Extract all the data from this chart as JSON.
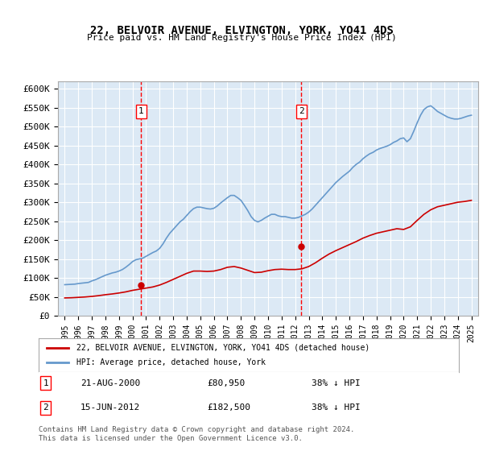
{
  "title": "22, BELVOIR AVENUE, ELVINGTON, YORK, YO41 4DS",
  "subtitle": "Price paid vs. HM Land Registry's House Price Index (HPI)",
  "hpi_label": "HPI: Average price, detached house, York",
  "property_label": "22, BELVOIR AVENUE, ELVINGTON, YORK, YO41 4DS (detached house)",
  "footer": "Contains HM Land Registry data © Crown copyright and database right 2024.\nThis data is licensed under the Open Government Licence v3.0.",
  "annotation1": {
    "num": "1",
    "date": "21-AUG-2000",
    "price": "£80,950",
    "hpi": "38% ↓ HPI",
    "year": 2000.64
  },
  "annotation2": {
    "num": "2",
    "date": "15-JUN-2012",
    "price": "£182,500",
    "hpi": "38% ↓ HPI",
    "year": 2012.46
  },
  "property_color": "#cc0000",
  "hpi_color": "#6699cc",
  "background_color": "#dce9f5",
  "grid_color": "#ffffff",
  "ylim": [
    0,
    620000
  ],
  "yticks": [
    0,
    50000,
    100000,
    150000,
    200000,
    250000,
    300000,
    350000,
    400000,
    450000,
    500000,
    550000,
    600000
  ],
  "xlim": [
    1994.5,
    2025.5
  ],
  "hpi_data": {
    "years": [
      1995,
      1995.25,
      1995.5,
      1995.75,
      1996,
      1996.25,
      1996.5,
      1996.75,
      1997,
      1997.25,
      1997.5,
      1997.75,
      1998,
      1998.25,
      1998.5,
      1998.75,
      1999,
      1999.25,
      1999.5,
      1999.75,
      2000,
      2000.25,
      2000.5,
      2000.75,
      2001,
      2001.25,
      2001.5,
      2001.75,
      2002,
      2002.25,
      2002.5,
      2002.75,
      2003,
      2003.25,
      2003.5,
      2003.75,
      2004,
      2004.25,
      2004.5,
      2004.75,
      2005,
      2005.25,
      2005.5,
      2005.75,
      2006,
      2006.25,
      2006.5,
      2006.75,
      2007,
      2007.25,
      2007.5,
      2007.75,
      2008,
      2008.25,
      2008.5,
      2008.75,
      2009,
      2009.25,
      2009.5,
      2009.75,
      2010,
      2010.25,
      2010.5,
      2010.75,
      2011,
      2011.25,
      2011.5,
      2011.75,
      2012,
      2012.25,
      2012.5,
      2012.75,
      2013,
      2013.25,
      2013.5,
      2013.75,
      2014,
      2014.25,
      2014.5,
      2014.75,
      2015,
      2015.25,
      2015.5,
      2015.75,
      2016,
      2016.25,
      2016.5,
      2016.75,
      2017,
      2017.25,
      2017.5,
      2017.75,
      2018,
      2018.25,
      2018.5,
      2018.75,
      2019,
      2019.25,
      2019.5,
      2019.75,
      2020,
      2020.25,
      2020.5,
      2020.75,
      2021,
      2021.25,
      2021.5,
      2021.75,
      2022,
      2022.25,
      2022.5,
      2022.75,
      2023,
      2023.25,
      2023.5,
      2023.75,
      2024,
      2024.25,
      2024.5,
      2024.75,
      2025
    ],
    "values": [
      82000,
      82500,
      83000,
      83500,
      85000,
      86000,
      87000,
      88000,
      92000,
      95000,
      99000,
      103000,
      107000,
      110000,
      113000,
      115000,
      118000,
      122000,
      128000,
      135000,
      143000,
      148000,
      150000,
      152000,
      157000,
      162000,
      167000,
      171000,
      178000,
      190000,
      205000,
      218000,
      228000,
      238000,
      248000,
      255000,
      265000,
      275000,
      283000,
      287000,
      287000,
      285000,
      283000,
      282000,
      284000,
      290000,
      298000,
      305000,
      312000,
      318000,
      318000,
      312000,
      305000,
      292000,
      278000,
      262000,
      252000,
      248000,
      252000,
      258000,
      263000,
      268000,
      268000,
      264000,
      262000,
      262000,
      260000,
      258000,
      258000,
      260000,
      264000,
      268000,
      274000,
      282000,
      292000,
      302000,
      312000,
      322000,
      332000,
      342000,
      352000,
      360000,
      368000,
      375000,
      382000,
      392000,
      400000,
      406000,
      415000,
      422000,
      428000,
      432000,
      438000,
      442000,
      445000,
      448000,
      452000,
      458000,
      462000,
      468000,
      470000,
      460000,
      468000,
      488000,
      510000,
      530000,
      545000,
      552000,
      555000,
      548000,
      540000,
      535000,
      530000,
      525000,
      522000,
      520000,
      520000,
      522000,
      525000,
      528000,
      530000
    ]
  },
  "property_data": {
    "years": [
      1995,
      1995.5,
      1996,
      1996.5,
      1997,
      1997.5,
      1998,
      1998.5,
      1999,
      1999.5,
      2000,
      2000.5,
      2001,
      2001.5,
      2002,
      2002.5,
      2003,
      2003.5,
      2004,
      2004.5,
      2005,
      2005.5,
      2006,
      2006.5,
      2007,
      2007.5,
      2008,
      2008.5,
      2009,
      2009.5,
      2010,
      2010.5,
      2011,
      2011.5,
      2012,
      2012.5,
      2013,
      2013.5,
      2014,
      2014.5,
      2015,
      2015.5,
      2016,
      2016.5,
      2017,
      2017.5,
      2018,
      2018.5,
      2019,
      2019.5,
      2020,
      2020.5,
      2021,
      2021.5,
      2022,
      2022.5,
      2023,
      2023.5,
      2024,
      2024.5,
      2025
    ],
    "values": [
      47000,
      47500,
      48500,
      49500,
      51000,
      53000,
      55500,
      57500,
      60000,
      63000,
      67000,
      70000,
      73000,
      76000,
      81000,
      88000,
      96000,
      104000,
      112000,
      118000,
      118000,
      117000,
      118000,
      122000,
      128000,
      130000,
      126000,
      120000,
      114000,
      115000,
      119000,
      122000,
      123000,
      122000,
      122000,
      124000,
      130000,
      140000,
      152000,
      163000,
      172000,
      180000,
      188000,
      196000,
      205000,
      212000,
      218000,
      222000,
      226000,
      230000,
      228000,
      235000,
      252000,
      268000,
      280000,
      288000,
      292000,
      296000,
      300000,
      302000,
      305000
    ]
  }
}
